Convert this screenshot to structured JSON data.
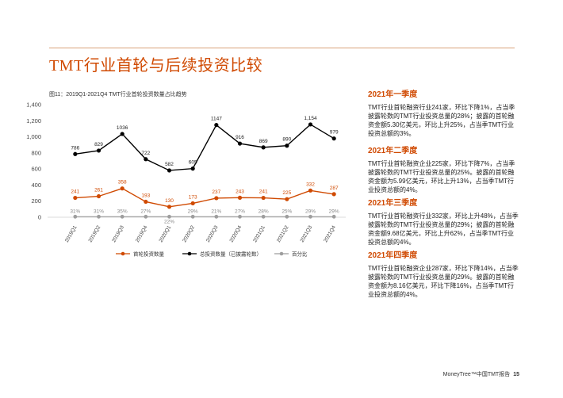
{
  "page": {
    "title": "TMT行业首轮与后续投资比较",
    "footer_brand": "MoneyTree™中国TMT报告",
    "footer_page": "15"
  },
  "chart_caption": "图11：2019Q1-2021Q4 TMT行业首轮投资数量占比趋势",
  "colors": {
    "first": "#d04a02",
    "total": "#000000",
    "pct": "#9e9e9e",
    "accent": "#d04a02"
  },
  "chart_data": {
    "type": "line",
    "categories": [
      "2019Q1",
      "2019Q2",
      "2019Q3",
      "2019Q4",
      "2020Q1",
      "2020Q2",
      "2020Q3",
      "2020Q4",
      "2021Q1",
      "2021Q2",
      "2021Q3",
      "2021Q4"
    ],
    "ylim": [
      0,
      1400
    ],
    "yticks": [
      "0",
      "200",
      "400",
      "600",
      "800",
      "1,000",
      "1,200",
      "1,400"
    ],
    "series": [
      {
        "name": "首轮投资数量",
        "values": [
          241,
          261,
          358,
          193,
          130,
          173,
          237,
          243,
          241,
          225,
          332,
          287
        ],
        "labels": [
          "241",
          "261",
          "358",
          "193",
          "130",
          "173",
          "237",
          "243",
          "241",
          "225",
          "332",
          "287"
        ]
      },
      {
        "name": "总投资数量（已披露轮数）",
        "values": [
          786,
          829,
          1036,
          722,
          582,
          605,
          1147,
          916,
          869,
          890,
          1154,
          979
        ],
        "labels": [
          "786",
          "829",
          "1036",
          "722",
          "582",
          "605",
          "1147",
          "916",
          "869",
          "890",
          "1,154",
          "979"
        ]
      },
      {
        "name": "百分比",
        "values": [
          31,
          31,
          35,
          27,
          22,
          29,
          21,
          27,
          28,
          25,
          29,
          29
        ],
        "labels": [
          "31%",
          "31%",
          "35%",
          "27%",
          "22%",
          "29%",
          "21%",
          "27%",
          "28%",
          "25%",
          "29%",
          "29%"
        ]
      }
    ],
    "legend_position": "bottom"
  },
  "sections": [
    {
      "heading": "2021年一季度",
      "text": "TMT行业首轮融资行业241家，环比下降1%，占当季披露轮数的TMT行业投资总量的28%；披露的首轮融资金额5.30亿美元，环比上升25%，占当季TMT行业投资总额的3%。"
    },
    {
      "heading": "2021年二季度",
      "text": "TMT行业首轮融资企业225家，环比下降7%，占当季披露轮数的TMT行业投资总量的25%。披露的首轮融资金额为5.99亿美元，环比上升13%，占当季TMT行业投资总额的4%。"
    },
    {
      "heading": "2021年三季度",
      "text": "TMT行业首轮融资行业332家，环比上升48%，占当季披露轮数的TMT行业投资总量的29%；披露的首轮融资金额9.68亿美元，环比上升62%，占当季TMT行业投资总额的4%。"
    },
    {
      "heading": "2021年四季度",
      "text": "TMT行业首轮融资企业287家，环比下降14%，占当季披露轮数的TMT行业投资总量的29%。披露的首轮融资金额为8.16亿美元，环比下降16%，占当季TMT行业投资总额的4%。"
    }
  ]
}
